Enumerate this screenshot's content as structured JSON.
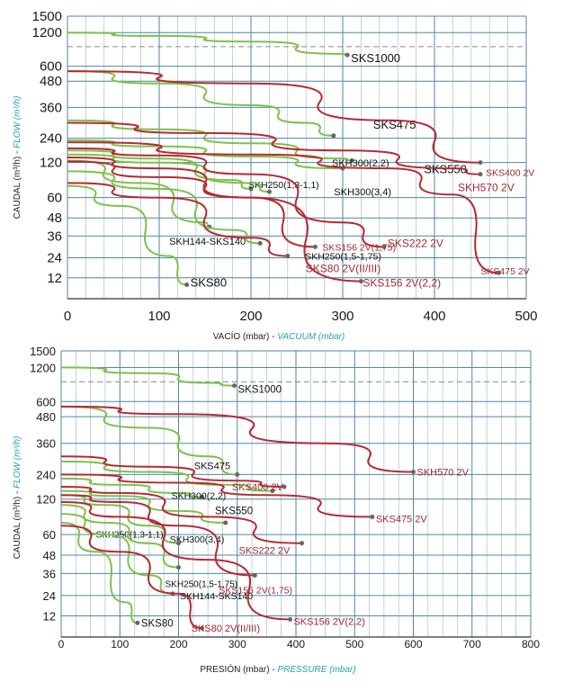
{
  "colors": {
    "grid_major": "#4f86a6",
    "grid_dash": "#8a8a8a",
    "green": "#7cc24a",
    "red": "#b52a32",
    "label_black": "#111111",
    "label_red": "#9e2a2f",
    "axis_teal": "#2a9fae"
  },
  "chart_data": [
    {
      "type": "line",
      "id": "vacuum",
      "xlabel_es": "VACÍO (mbar) - ",
      "xlabel_en": "VACUUM (mbar)",
      "ylabel_es": "CAUDAL (m³/h) - ",
      "ylabel_en": "FLOW (m³/h)",
      "xlim": [
        0,
        500
      ],
      "xticks": [
        0,
        100,
        200,
        300,
        400,
        500
      ],
      "yticks": [
        12,
        24,
        36,
        48,
        60,
        120,
        240,
        360,
        480,
        600,
        1200,
        1500
      ],
      "ylim": [
        0,
        1500
      ],
      "series": [
        {
          "name": "SKS1000",
          "color": "green",
          "points": [
            [
              0,
              1200
            ],
            [
              100,
              1140
            ],
            [
              200,
              1040
            ],
            [
              300,
              820
            ],
            [
              305,
              800
            ]
          ],
          "label_color": "black"
        },
        {
          "name": "SKS475",
          "color": "green",
          "points": [
            [
              0,
              560
            ],
            [
              100,
              470
            ],
            [
              200,
              370
            ],
            [
              260,
              300
            ],
            [
              290,
              250
            ]
          ],
          "label_color": "black"
        },
        {
          "name": "SKS550",
          "color": "green",
          "points": [
            [
              0,
              310
            ],
            [
              100,
              275
            ],
            [
              200,
              215
            ],
            [
              300,
              140
            ],
            [
              310,
              130
            ]
          ],
          "label_color": "black"
        },
        {
          "name": "SKH300(2,2)",
          "color": "green",
          "points": [
            [
              0,
              230
            ],
            [
              100,
              200
            ],
            [
              200,
              150
            ],
            [
              300,
              110
            ]
          ],
          "label_color": "black"
        },
        {
          "name": "SKH250(1,3-1,1)",
          "color": "green",
          "points": [
            [
              0,
              180
            ],
            [
              100,
              140
            ],
            [
              180,
              90
            ],
            [
              200,
              75
            ]
          ],
          "label_color": "black"
        },
        {
          "name": "SKH300(3,4)",
          "color": "green",
          "points": [
            [
              0,
              160
            ],
            [
              100,
              120
            ],
            [
              200,
              85
            ],
            [
              220,
              70
            ]
          ],
          "label_color": "black"
        },
        {
          "name": "SKH144-SKS140",
          "color": "green",
          "points": [
            [
              0,
              130
            ],
            [
              80,
              85
            ],
            [
              150,
              45
            ],
            [
              155,
              42
            ]
          ],
          "label_color": "black"
        },
        {
          "name": "SKH250(1,5-1,75)",
          "color": "green",
          "points": [
            [
              0,
              105
            ],
            [
              100,
              75
            ],
            [
              180,
              40
            ],
            [
              210,
              32
            ]
          ],
          "label_color": "black"
        },
        {
          "name": "SKS80",
          "color": "green",
          "points": [
            [
              0,
              80
            ],
            [
              60,
              55
            ],
            [
              110,
              25
            ],
            [
              130,
              8
            ]
          ],
          "label_color": "black"
        },
        {
          "name": "SKH570 2V",
          "color": "red",
          "points": [
            [
              0,
              560
            ],
            [
              200,
              470
            ],
            [
              350,
              310
            ],
            [
              450,
              120
            ]
          ],
          "label_color": "red"
        },
        {
          "name": "SKS400 2V",
          "color": "red",
          "points": [
            [
              0,
              300
            ],
            [
              150,
              260
            ],
            [
              300,
              180
            ],
            [
              420,
              110
            ],
            [
              450,
              100
            ]
          ],
          "label_color": "red"
        },
        {
          "name": "SKS475 2V",
          "color": "red",
          "points": [
            [
              0,
              220
            ],
            [
              200,
              160
            ],
            [
              350,
              110
            ],
            [
              420,
              65
            ],
            [
              470,
              15
            ]
          ],
          "label_color": "red"
        },
        {
          "name": "SKS222 2V",
          "color": "red",
          "points": [
            [
              0,
              190
            ],
            [
              100,
              155
            ],
            [
              200,
              100
            ],
            [
              300,
              45
            ],
            [
              345,
              30
            ]
          ],
          "label_color": "red"
        },
        {
          "name": "SKS156 2V(1,75)",
          "color": "red",
          "points": [
            [
              0,
              145
            ],
            [
              100,
              110
            ],
            [
              200,
              60
            ],
            [
              270,
              30
            ]
          ],
          "label_color": "red"
        },
        {
          "name": "SKS156 2V(2,2)",
          "color": "red",
          "points": [
            [
              0,
              125
            ],
            [
              100,
              95
            ],
            [
              200,
              60
            ],
            [
              320,
              10
            ]
          ],
          "label_color": "red"
        },
        {
          "name": "SKS80 2V(II/III)",
          "color": "red",
          "points": [
            [
              0,
              85
            ],
            [
              100,
              60
            ],
            [
              200,
              35
            ],
            [
              240,
              25
            ]
          ],
          "label_color": "red"
        }
      ]
    },
    {
      "type": "line",
      "id": "pressure",
      "xlabel_es": "PRESIÓN (mbar) - ",
      "xlabel_en": "PRESSURE (mbar)",
      "ylabel_es": "CAUDAL (m³/h) - ",
      "ylabel_en": "FLOW (m³/h)",
      "xlim": [
        0,
        800
      ],
      "xticks": [
        0,
        100,
        200,
        300,
        400,
        500,
        600,
        700,
        800
      ],
      "yticks": [
        12,
        24,
        36,
        48,
        60,
        120,
        240,
        360,
        480,
        600,
        1200,
        1500
      ],
      "ylim": [
        0,
        1500
      ],
      "series": [
        {
          "name": "SKS1000",
          "color": "green",
          "points": [
            [
              0,
              1200
            ],
            [
              150,
              1100
            ],
            [
              250,
              930
            ],
            [
              295,
              880
            ]
          ],
          "label_color": "black"
        },
        {
          "name": "SKS475",
          "color": "green",
          "points": [
            [
              0,
              560
            ],
            [
              150,
              430
            ],
            [
              250,
              310
            ],
            [
              300,
              240
            ]
          ],
          "label_color": "black"
        },
        {
          "name": "SKS550",
          "color": "green",
          "points": [
            [
              0,
              290
            ],
            [
              150,
              250
            ],
            [
              280,
              190
            ],
            [
              360,
              160
            ]
          ],
          "label_color": "black"
        },
        {
          "name": "SKH300(2,2)",
          "color": "green",
          "points": [
            [
              0,
              220
            ],
            [
              100,
              190
            ],
            [
              200,
              150
            ],
            [
              240,
              130
            ]
          ],
          "label_color": "black"
        },
        {
          "name": "SKH300(3,4)",
          "color": "green",
          "points": [
            [
              0,
              160
            ],
            [
              100,
              135
            ],
            [
              200,
              100
            ],
            [
              280,
              80
            ]
          ],
          "label_color": "black"
        },
        {
          "name": "SKH250(1,3-1,1)",
          "color": "green",
          "points": [
            [
              0,
              140
            ],
            [
              80,
              110
            ],
            [
              150,
              75
            ],
            [
              200,
              55
            ]
          ],
          "label_color": "black"
        },
        {
          "name": "SKH250(1,5-1,75)",
          "color": "green",
          "points": [
            [
              0,
              110
            ],
            [
              80,
              80
            ],
            [
              150,
              55
            ],
            [
              200,
              40
            ]
          ],
          "label_color": "black"
        },
        {
          "name": "SKH144-SKS140",
          "color": "green",
          "points": [
            [
              0,
              95
            ],
            [
              80,
              60
            ],
            [
              150,
              35
            ],
            [
              190,
              25
            ]
          ],
          "label_color": "black"
        },
        {
          "name": "SKS80",
          "color": "green",
          "points": [
            [
              0,
              80
            ],
            [
              60,
              50
            ],
            [
              110,
              20
            ],
            [
              130,
              8
            ]
          ],
          "label_color": "black"
        },
        {
          "name": "SKH570 2V",
          "color": "red",
          "points": [
            [
              0,
              560
            ],
            [
              200,
              500
            ],
            [
              450,
              360
            ],
            [
              600,
              250
            ]
          ],
          "label_color": "red"
        },
        {
          "name": "SKS400 2V",
          "color": "red",
          "points": [
            [
              0,
              310
            ],
            [
              150,
              270
            ],
            [
              300,
              210
            ],
            [
              380,
              180
            ]
          ],
          "label_color": "red"
        },
        {
          "name": "SKS475 2V",
          "color": "red",
          "points": [
            [
              0,
              240
            ],
            [
              200,
              200
            ],
            [
              350,
              140
            ],
            [
              530,
              90
            ]
          ],
          "label_color": "red"
        },
        {
          "name": "SKS222 2V",
          "color": "red",
          "points": [
            [
              0,
              180
            ],
            [
              100,
              150
            ],
            [
              250,
              90
            ],
            [
              410,
              55
            ]
          ],
          "label_color": "red"
        },
        {
          "name": "SKS156 2V(1,75)",
          "color": "red",
          "points": [
            [
              0,
              140
            ],
            [
              100,
              115
            ],
            [
              200,
              75
            ],
            [
              330,
              35
            ]
          ],
          "label_color": "red"
        },
        {
          "name": "SKS156 2V(2,2)",
          "color": "red",
          "points": [
            [
              0,
              115
            ],
            [
              100,
              90
            ],
            [
              250,
              45
            ],
            [
              390,
              10
            ]
          ],
          "label_color": "red"
        },
        {
          "name": "SKS80 2V(II/III)",
          "color": "red",
          "points": [
            [
              0,
              75
            ],
            [
              100,
              50
            ],
            [
              200,
              25
            ],
            [
              240,
              5
            ]
          ],
          "label_color": "red"
        }
      ]
    }
  ]
}
